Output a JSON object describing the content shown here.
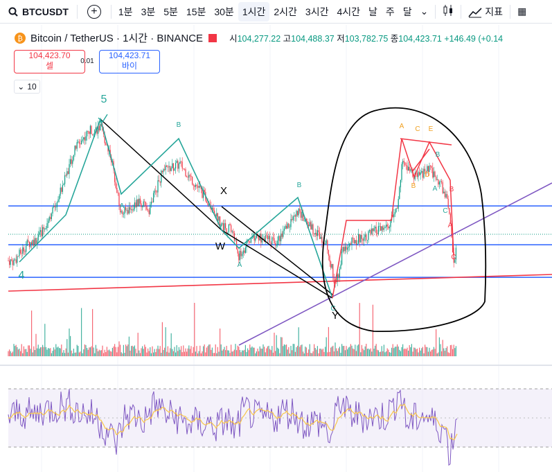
{
  "toolbar": {
    "symbol": "BTCUSDT",
    "intervals": [
      "1분",
      "3분",
      "5분",
      "15분",
      "30분",
      "1시간",
      "2시간",
      "3시간",
      "4시간",
      "날",
      "주",
      "달"
    ],
    "active_interval": "1시간",
    "indicators_label": "지표"
  },
  "legend": {
    "title": "Bitcoin / TetherUS · 1시간 · BINANCE",
    "open_label": "시",
    "open": "104,277.22",
    "high_label": "고",
    "high": "104,488.37",
    "low_label": "저",
    "low": "103,782.75",
    "close_label": "종",
    "close": "104,423.71",
    "change": "+146.49 (+0.14",
    "sell_price": "104,423.70",
    "sell_label": "셀",
    "spread": "0.01",
    "buy_price": "104,423.71",
    "buy_label": "바이",
    "indicator_count": "10"
  },
  "colors": {
    "up": "#089981",
    "down": "#f23645",
    "wave": "#26a69a",
    "blue_line": "#2962ff",
    "purple": "#7e57c2",
    "rsi": "#7e57c2",
    "rsi_ma": "#f7c548"
  },
  "annotations": {
    "wave5": "5",
    "wave4": "4",
    "a1": "A",
    "b1": "B",
    "x": "X",
    "w": "W",
    "a2": "A",
    "b2": "B",
    "c2": "C",
    "y": "Y",
    "ta": "A",
    "tb": "B",
    "tc": "C",
    "td": "D",
    "te": "E",
    "b3": "B",
    "a3": "A",
    "c3": "C",
    "b4": "B",
    "a4": "A",
    "c4": "C"
  },
  "chart_data": {
    "type": "candlestick",
    "symbol": "BTCUSDT",
    "interval": "1h",
    "price_points": [
      [
        0,
        104100
      ],
      [
        20,
        104050
      ],
      [
        40,
        104450
      ],
      [
        55,
        104550
      ],
      [
        80,
        105300
      ],
      [
        110,
        106600
      ],
      [
        130,
        106950
      ],
      [
        145,
        107000
      ],
      [
        160,
        106400
      ],
      [
        175,
        105100
      ],
      [
        200,
        105350
      ],
      [
        215,
        105200
      ],
      [
        235,
        106050
      ],
      [
        260,
        106200
      ],
      [
        280,
        105800
      ],
      [
        305,
        105300
      ],
      [
        320,
        104850
      ],
      [
        335,
        104750
      ],
      [
        345,
        104150
      ],
      [
        365,
        104600
      ],
      [
        400,
        104500
      ],
      [
        430,
        105150
      ],
      [
        450,
        104800
      ],
      [
        470,
        104500
      ],
      [
        485,
        103500
      ],
      [
        495,
        104300
      ],
      [
        510,
        104500
      ],
      [
        540,
        104700
      ],
      [
        560,
        104800
      ],
      [
        575,
        105300
      ],
      [
        580,
        106250
      ],
      [
        600,
        105900
      ],
      [
        620,
        106100
      ],
      [
        635,
        105800
      ],
      [
        648,
        105300
      ],
      [
        655,
        103950
      ],
      [
        660,
        104420
      ]
    ],
    "horizontal_levels": [
      105280,
      104420,
      103700
    ],
    "rsi_bands": [
      70,
      30
    ]
  }
}
